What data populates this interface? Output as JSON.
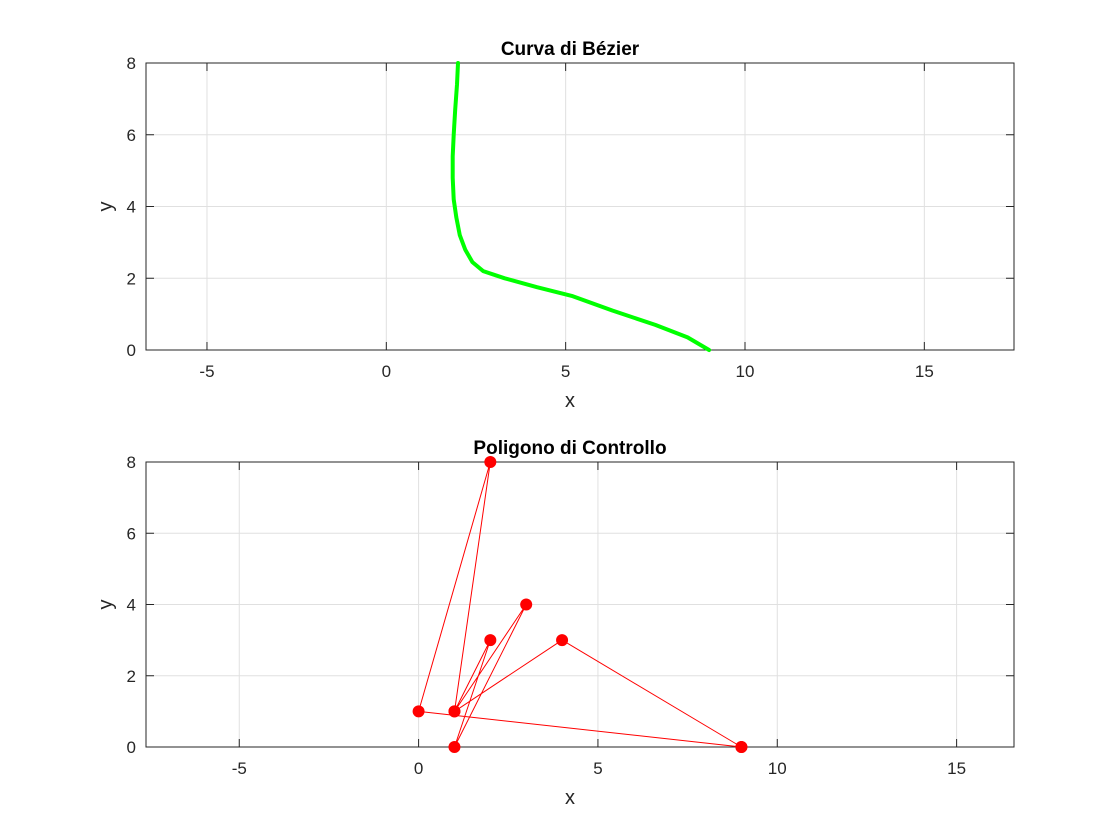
{
  "colors": {
    "curve": "#00ff00",
    "polygon": "#ff0000",
    "grid": "#e0e0e0",
    "axis": "#262626"
  },
  "chart_data": [
    {
      "type": "line",
      "title": "Curva di Bézier",
      "xlabel": "x",
      "ylabel": "y",
      "xlim": [
        -6.7,
        17.5
      ],
      "ylim": [
        0,
        8
      ],
      "xticks": [
        -5,
        0,
        5,
        10,
        15
      ],
      "yticks": [
        0,
        2,
        4,
        6,
        8
      ],
      "grid": true,
      "series": [
        {
          "x": [
            9.0,
            8.4,
            7.5,
            6.3,
            5.2,
            4.2,
            3.3,
            2.7,
            2.4,
            2.2,
            2.05,
            1.95,
            1.88,
            1.85,
            1.85,
            1.88,
            1.92,
            1.97,
            2.0
          ],
          "y": [
            0.0,
            0.35,
            0.7,
            1.1,
            1.5,
            1.75,
            2.0,
            2.2,
            2.45,
            2.8,
            3.2,
            3.7,
            4.2,
            4.8,
            5.4,
            6.0,
            6.7,
            7.4,
            8.0
          ]
        }
      ]
    },
    {
      "type": "line",
      "title": "Poligono di Controllo",
      "xlabel": "x",
      "ylabel": "y",
      "xlim": [
        -7.6,
        16.6
      ],
      "ylim": [
        0,
        8
      ],
      "xticks": [
        -5,
        0,
        5,
        10,
        15
      ],
      "yticks": [
        0,
        2,
        4,
        6,
        8
      ],
      "grid": true,
      "markers": true,
      "series": [
        {
          "x": [
            9,
            0,
            2,
            1,
            3,
            1,
            2,
            1,
            4,
            9
          ],
          "y": [
            0,
            1,
            8,
            1,
            4,
            0,
            3,
            1,
            3,
            0
          ]
        }
      ]
    }
  ]
}
